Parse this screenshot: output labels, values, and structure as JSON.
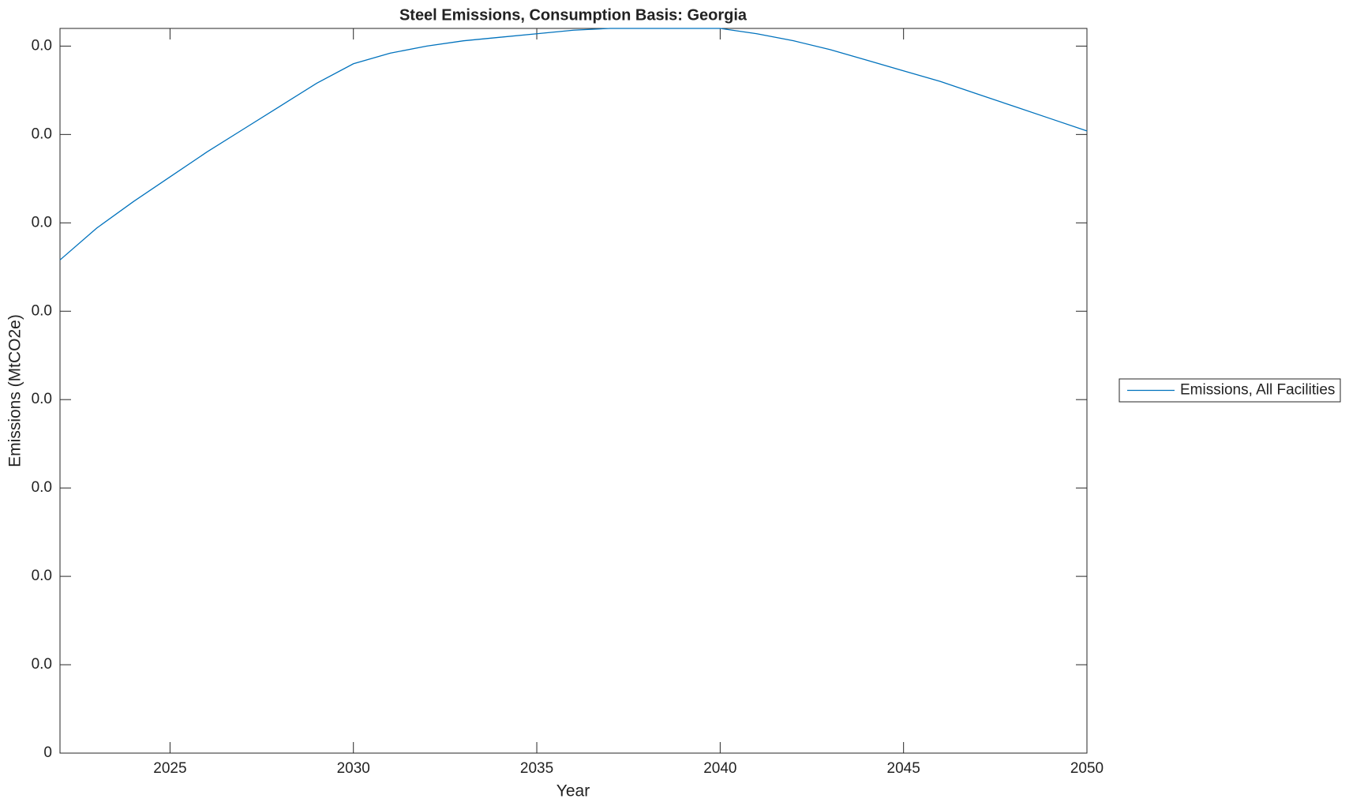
{
  "chart_data": {
    "type": "line",
    "title": "Steel Emissions, Consumption Basis: Georgia",
    "x_label": "Year",
    "y_label": "Emissions (MtCO2e)",
    "x": [
      2022,
      2023,
      2024,
      2025,
      2026,
      2027,
      2028,
      2029,
      2030,
      2031,
      2032,
      2033,
      2034,
      2035,
      2036,
      2037,
      2038,
      2039,
      2040,
      2041,
      2042,
      2043,
      2044,
      2045,
      2046,
      2047,
      2048,
      2049,
      2050
    ],
    "series": [
      {
        "name": "Emissions, All Facilities",
        "color": "#0072bd",
        "values": [
          0.00279,
          0.00297,
          0.00312,
          0.00326,
          0.0034,
          0.00353,
          0.00366,
          0.00379,
          0.0039,
          0.00396,
          0.004,
          0.00403,
          0.00405,
          0.00407,
          0.00409,
          0.0041,
          0.0041,
          0.0041,
          0.0041,
          0.00407,
          0.00403,
          0.00398,
          0.00392,
          0.00386,
          0.0038,
          0.00373,
          0.00366,
          0.00359,
          0.00352
        ]
      }
    ],
    "xlim": [
      2022,
      2050
    ],
    "xticks": [
      2025,
      2030,
      2035,
      2040,
      2045,
      2050
    ],
    "ylim": [
      0,
      0.0041
    ],
    "yticks": [
      0,
      {
        "value": 0.0005,
        "label": "0.0"
      },
      {
        "value": 0.001,
        "label": "0.0"
      },
      {
        "value": 0.0015,
        "label": "0.0"
      },
      {
        "value": 0.002,
        "label": "0.0"
      },
      {
        "value": 0.0025,
        "label": "0.0"
      },
      {
        "value": 0.003,
        "label": "0.0"
      },
      {
        "value": 0.0035,
        "label": "0.0"
      },
      {
        "value": 0.004,
        "label": "0.0"
      }
    ],
    "grid": false,
    "legend": "outside-right"
  }
}
